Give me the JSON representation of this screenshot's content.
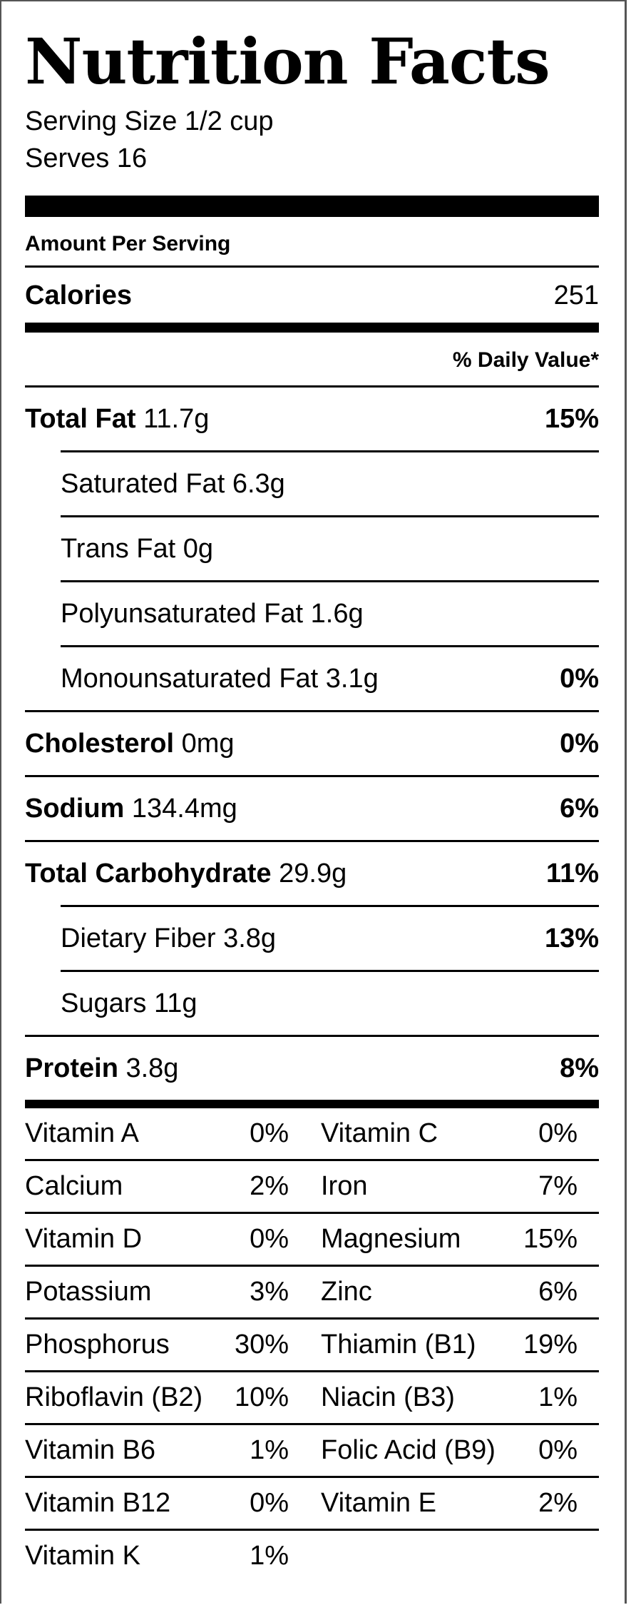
{
  "title": "Nutrition Facts",
  "serving_size": "Serving Size 1/2 cup",
  "serves": "Serves 16",
  "amount_per_serving": "Amount Per Serving",
  "calories": {
    "label": "Calories",
    "value": "251"
  },
  "daily_value_header": "% Daily Value*",
  "nutrients": [
    {
      "name": "Total Fat",
      "amount": "11.7g",
      "pct": "15%"
    },
    {
      "name": "Saturated Fat",
      "amount": "6.3g",
      "pct": ""
    },
    {
      "name": "Trans Fat",
      "amount": "0g",
      "pct": ""
    },
    {
      "name": "Polyunsaturated Fat",
      "amount": "1.6g",
      "pct": ""
    },
    {
      "name": "Monounsaturated Fat",
      "amount": "3.1g",
      "pct": "0%"
    },
    {
      "name": "Cholesterol",
      "amount": "0mg",
      "pct": "0%"
    },
    {
      "name": "Sodium",
      "amount": "134.4mg",
      "pct": "6%"
    },
    {
      "name": "Total Carbohydrate",
      "amount": "29.9g",
      "pct": "11%"
    },
    {
      "name": "Dietary Fiber",
      "amount": "3.8g",
      "pct": "13%"
    },
    {
      "name": "Sugars",
      "amount": "11g",
      "pct": ""
    },
    {
      "name": "Protein",
      "amount": "3.8g",
      "pct": "8%"
    }
  ],
  "vitamins": [
    {
      "l_name": "Vitamin A",
      "l_pct": "0%",
      "r_name": "Vitamin C",
      "r_pct": "0%"
    },
    {
      "l_name": "Calcium",
      "l_pct": "2%",
      "r_name": "Iron",
      "r_pct": "7%"
    },
    {
      "l_name": "Vitamin D",
      "l_pct": "0%",
      "r_name": "Magnesium",
      "r_pct": "15%"
    },
    {
      "l_name": "Potassium",
      "l_pct": "3%",
      "r_name": "Zinc",
      "r_pct": "6%"
    },
    {
      "l_name": "Phosphorus",
      "l_pct": "30%",
      "r_name": "Thiamin (B1)",
      "r_pct": "19%"
    },
    {
      "l_name": "Riboflavin (B2)",
      "l_pct": "10%",
      "r_name": "Niacin (B3)",
      "r_pct": "1%"
    },
    {
      "l_name": "Vitamin B6",
      "l_pct": "1%",
      "r_name": "Folic Acid (B9)",
      "r_pct": "0%"
    },
    {
      "l_name": "Vitamin B12",
      "l_pct": "0%",
      "r_name": "Vitamin E",
      "r_pct": "2%"
    },
    {
      "l_name": "Vitamin K",
      "l_pct": "1%",
      "r_name": "",
      "r_pct": ""
    }
  ]
}
